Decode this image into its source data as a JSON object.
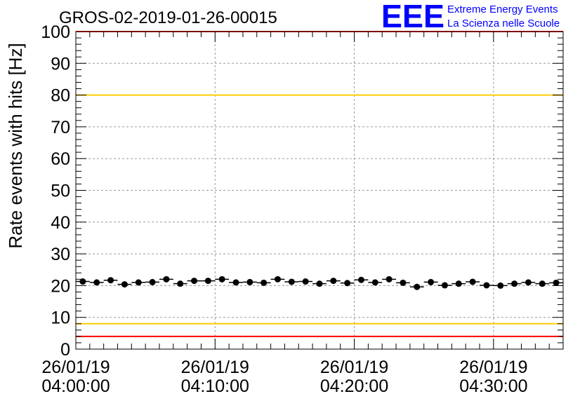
{
  "chart_data": {
    "type": "scatter",
    "title": "GROS-02-2019-01-26-00015",
    "xlabel": "",
    "ylabel": "Rate events with hits [Hz]",
    "ylim": [
      0,
      100
    ],
    "y_ticks": [
      "0",
      "10",
      "20",
      "30",
      "40",
      "50",
      "60",
      "70",
      "80",
      "90",
      "100"
    ],
    "x_ticks": [
      {
        "date": "26/01/19",
        "time": "04:00:00"
      },
      {
        "date": "26/01/19",
        "time": "04:10:00"
      },
      {
        "date": "26/01/19",
        "time": "04:20:00"
      },
      {
        "date": "26/01/19",
        "time": "04:30:00"
      }
    ],
    "xlim": [
      "04:00:00",
      "04:35:00"
    ],
    "grid": true,
    "reference_lines": [
      {
        "y": 4,
        "color": "#ff0000"
      },
      {
        "y": 8,
        "color": "#ffcc00"
      },
      {
        "y": 80,
        "color": "#ffcc00"
      },
      {
        "y": 100,
        "color": "#ff0000"
      }
    ],
    "series": [
      {
        "color": "#000000",
        "x": [
          "04:00:30",
          "04:01:30",
          "04:02:30",
          "04:03:30",
          "04:04:30",
          "04:05:30",
          "04:06:30",
          "04:07:30",
          "04:08:30",
          "04:09:30",
          "04:10:30",
          "04:11:30",
          "04:12:30",
          "04:13:30",
          "04:14:30",
          "04:15:30",
          "04:16:30",
          "04:17:30",
          "04:18:30",
          "04:19:30",
          "04:20:30",
          "04:21:30",
          "04:22:30",
          "04:23:30",
          "04:24:30",
          "04:25:30",
          "04:26:30",
          "04:27:30",
          "04:28:30",
          "04:29:30",
          "04:30:30",
          "04:31:30",
          "04:32:30",
          "04:33:30",
          "04:34:30"
        ],
        "y": [
          21.3,
          21.0,
          21.7,
          20.4,
          21.0,
          21.1,
          22.0,
          20.6,
          21.5,
          21.5,
          22.0,
          21.0,
          21.1,
          20.9,
          22.0,
          21.2,
          21.3,
          20.6,
          21.5,
          20.8,
          21.8,
          21.0,
          22.0,
          20.9,
          19.6,
          21.1,
          20.1,
          20.6,
          21.2,
          20.1,
          20.0,
          20.6,
          21.0,
          20.6,
          20.9
        ]
      }
    ]
  },
  "branding": {
    "logo_text": "EEE",
    "line1": "Extreme Energy Events",
    "line2": "La Scienza nelle Scuole",
    "color": "#0000ff"
  }
}
